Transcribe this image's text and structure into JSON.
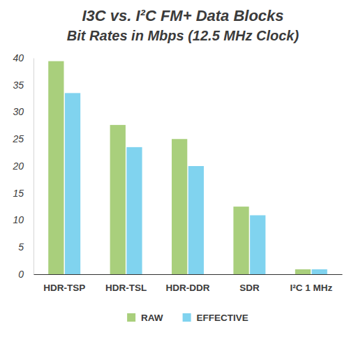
{
  "chart_data": {
    "type": "bar",
    "title": "I3C vs. I²C FM+ Data Blocks",
    "subtitle": "Bit Rates in Mbps (12.5 MHz Clock)",
    "categories": [
      "HDR-TSP",
      "HDR-TSL",
      "HDR-DDR",
      "SDR",
      "I²C 1 MHz"
    ],
    "series": [
      {
        "name": "RAW",
        "color": "#a9cf7c",
        "values": [
          39.4,
          27.6,
          25,
          12.5,
          0.9
        ]
      },
      {
        "name": "EFFECTIVE",
        "color": "#80d3ef",
        "values": [
          33.5,
          23.5,
          20,
          10.9,
          0.9
        ]
      }
    ],
    "ylim": [
      0,
      40
    ],
    "yticks": [
      0,
      5,
      10,
      15,
      20,
      25,
      30,
      35,
      40
    ],
    "grid": false,
    "legend": "bottom"
  }
}
